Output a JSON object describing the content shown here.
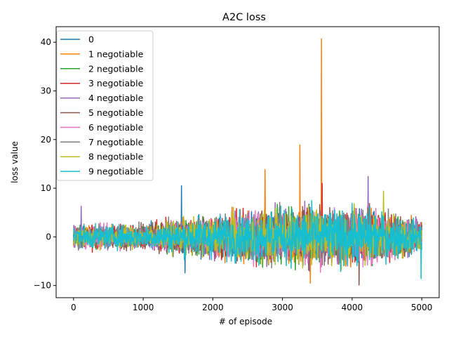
{
  "chart_data": {
    "type": "line",
    "title": "A2C loss",
    "xlabel": "# of episode",
    "ylabel": "loss value",
    "xlim": [
      -250,
      5250
    ],
    "ylim": [
      -12.5,
      43.2
    ],
    "xticks": [
      0,
      1000,
      2000,
      3000,
      4000,
      5000
    ],
    "yticks": [
      -10,
      0,
      10,
      20,
      30,
      40
    ],
    "xtick_labels": [
      "0",
      "1000",
      "2000",
      "3000",
      "4000",
      "5000"
    ],
    "ytick_labels": [
      "−10",
      "0",
      "10",
      "20",
      "30",
      "40"
    ],
    "grid": false,
    "legend_position": "top-left",
    "x_range": [
      0,
      5000
    ],
    "series": [
      {
        "name": "0",
        "color": "#1f77b4"
      },
      {
        "name": "1 negotiable",
        "color": "#ff7f0e"
      },
      {
        "name": "2 negotiable",
        "color": "#2ca02c"
      },
      {
        "name": "3 negotiable",
        "color": "#d62728"
      },
      {
        "name": "4 negotiable",
        "color": "#9467bd"
      },
      {
        "name": "5 negotiable",
        "color": "#8c564b"
      },
      {
        "name": "6 negotiable",
        "color": "#e377c2"
      },
      {
        "name": "7 negotiable",
        "color": "#7f7f7f"
      },
      {
        "name": "8 negotiable",
        "color": "#bcbd22"
      },
      {
        "name": "9 negotiable",
        "color": "#17becf"
      }
    ],
    "peaks": [
      {
        "series": "0",
        "x": 1550,
        "y": 10.5
      },
      {
        "series": "1 negotiable",
        "x": 3560,
        "y": 40.7
      },
      {
        "series": "1 negotiable",
        "x": 3250,
        "y": 18.9
      },
      {
        "series": "1 negotiable",
        "x": 2750,
        "y": 13.8
      },
      {
        "series": "4 negotiable",
        "x": 4230,
        "y": 12.4
      },
      {
        "series": "3 negotiable",
        "x": 3570,
        "y": 11.0
      },
      {
        "series": "8 negotiable",
        "x": 4450,
        "y": 9.4
      },
      {
        "series": "5 negotiable",
        "x": 4100,
        "y": -9.9
      },
      {
        "series": "1 negotiable",
        "x": 3400,
        "y": -9.5
      },
      {
        "series": "9 negotiable",
        "x": 4990,
        "y": -8.6
      },
      {
        "series": "0",
        "x": 1600,
        "y": -7.4
      },
      {
        "series": "4 negotiable",
        "x": 110,
        "y": 6.3
      }
    ]
  }
}
